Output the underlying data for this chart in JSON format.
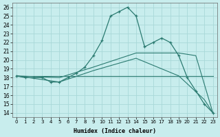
{
  "xlabel": "Humidex (Indice chaleur)",
  "background_color": "#c8eded",
  "grid_color": "#a8d8d8",
  "line_color": "#2a7a70",
  "xlim": [
    -0.5,
    23.5
  ],
  "ylim": [
    13.5,
    26.5
  ],
  "yticks": [
    14,
    15,
    16,
    17,
    18,
    19,
    20,
    21,
    22,
    23,
    24,
    25,
    26
  ],
  "xticks": [
    0,
    1,
    2,
    3,
    4,
    5,
    6,
    7,
    8,
    9,
    10,
    11,
    12,
    13,
    14,
    15,
    16,
    17,
    18,
    19,
    20,
    21,
    22,
    23
  ],
  "curve1_x": [
    0,
    1,
    2,
    3,
    4,
    5,
    6,
    7,
    8,
    9,
    10,
    11,
    12,
    13,
    14,
    15,
    16,
    17,
    18,
    19,
    20,
    21,
    22,
    23
  ],
  "curve1_y": [
    18.2,
    18.0,
    18.0,
    18.0,
    17.5,
    17.5,
    18.0,
    18.5,
    19.2,
    20.5,
    22.2,
    25.0,
    25.5,
    26.0,
    25.0,
    21.5,
    22.0,
    22.5,
    22.0,
    20.5,
    18.0,
    16.5,
    15.0,
    14.0
  ],
  "curve2_x": [
    0,
    23
  ],
  "curve2_y": [
    18.2,
    18.2
  ],
  "curve3_x": [
    0,
    5,
    9,
    14,
    19,
    21,
    23
  ],
  "curve3_y": [
    18.2,
    18.0,
    19.2,
    20.8,
    20.8,
    20.5,
    14.0
  ],
  "curve4_x": [
    0,
    5,
    9,
    14,
    19,
    22,
    23
  ],
  "curve4_y": [
    18.2,
    17.5,
    18.8,
    20.2,
    18.2,
    15.5,
    14.0
  ]
}
